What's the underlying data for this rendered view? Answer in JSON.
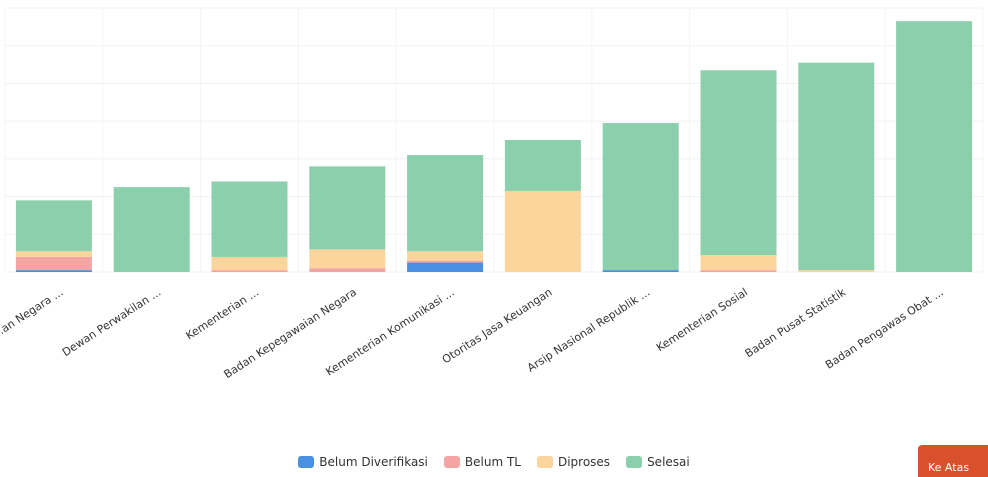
{
  "chart_data": {
    "type": "bar",
    "stacked": true,
    "categories": [
      "...an Negara ...",
      "Dewan Perwakilan ...",
      "Kementerian ...",
      "Badan Kepegawaian Negara",
      "Kementerian Komunikasi ...",
      "Otoritas Jasa Keuangan",
      "Arsip Nasional Republik ...",
      "Kementerian Sosial",
      "Badan Pusat Statistik",
      "Badan Pengawas Obat ..."
    ],
    "series": [
      {
        "name": "Belum Diverifikasi",
        "color": "#4a90e2",
        "values": [
          1,
          0,
          0,
          0,
          5,
          0,
          1,
          0,
          0,
          0
        ]
      },
      {
        "name": "Belum TL",
        "color": "#f4a4a4",
        "values": [
          7,
          0,
          1,
          2,
          1,
          0,
          0,
          1,
          0,
          0
        ]
      },
      {
        "name": "Diproses",
        "color": "#fcd59c",
        "values": [
          3,
          0,
          7,
          10,
          5,
          43,
          0,
          8,
          1,
          0
        ]
      },
      {
        "name": "Selesai",
        "color": "#8ccfac",
        "values": [
          27,
          45,
          40,
          44,
          51,
          27,
          78,
          98,
          110,
          133
        ]
      }
    ],
    "ylim": [
      0,
      140
    ],
    "grid": true,
    "legend_position": "bottom"
  },
  "ui": {
    "top_button_label": "Ke Atas"
  }
}
